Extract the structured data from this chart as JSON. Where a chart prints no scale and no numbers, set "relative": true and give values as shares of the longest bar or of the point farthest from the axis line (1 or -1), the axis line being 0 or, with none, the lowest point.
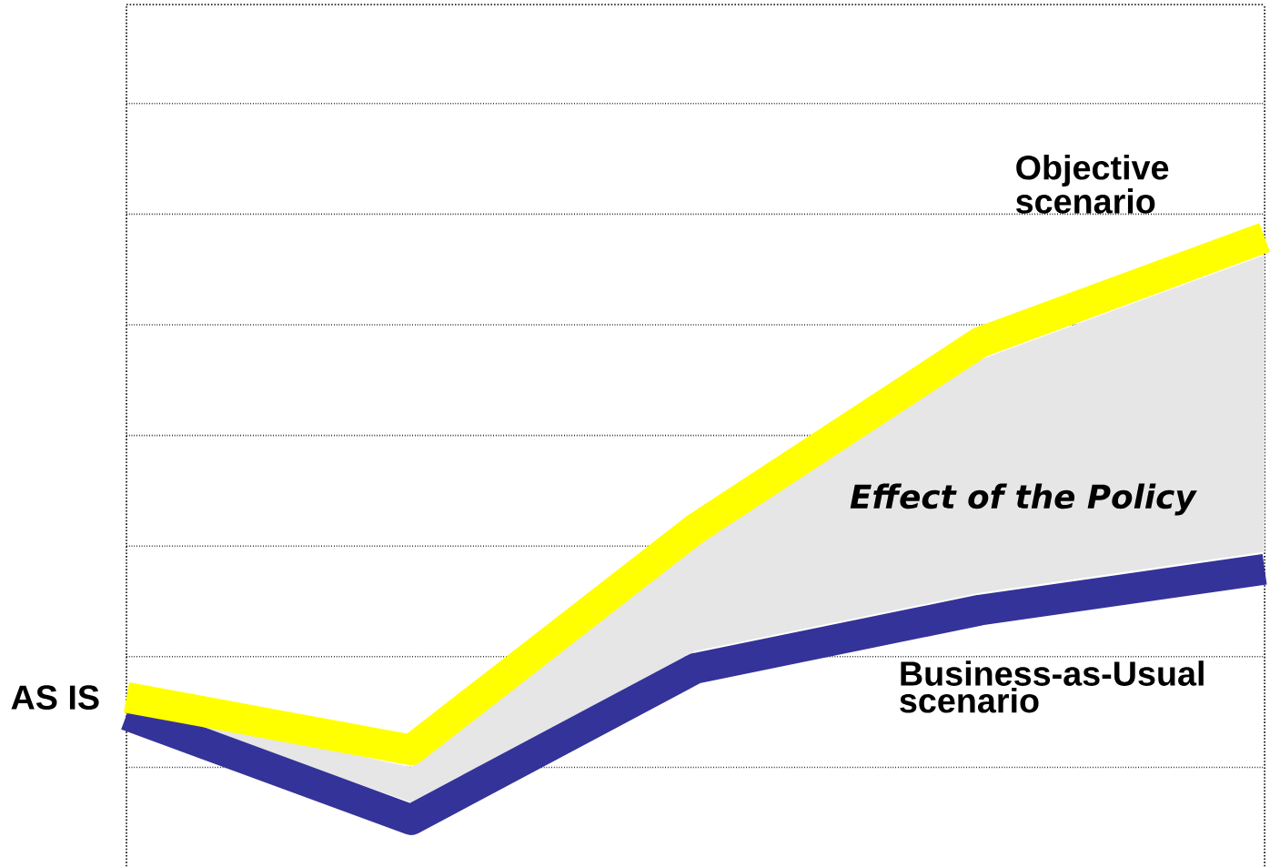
{
  "chart_data": {
    "type": "line",
    "relative": true,
    "categories": [
      null,
      null,
      null,
      null,
      null
    ],
    "series": [
      {
        "name": "Business-as-Usual scenario",
        "color": "#343399",
        "values": [
          0.18,
          0,
          0.26,
          0.36,
          0.43
        ],
        "lower": [
          0.2,
          0.03,
          0.29,
          0.39,
          0.46
        ],
        "upper": [
          0.2,
          0.09,
          0.47,
          0.79,
          0.97
        ]
      },
      {
        "name": "Objective scenario",
        "color": "#ffff00",
        "values": [
          0.21,
          0.12,
          0.5,
          0.82,
          1.0
        ]
      }
    ],
    "annotations": [
      "AS IS",
      "Effect of the Policy"
    ],
    "grid": "y",
    "legend": false,
    "marker": "none",
    "line_style": "solid"
  }
}
